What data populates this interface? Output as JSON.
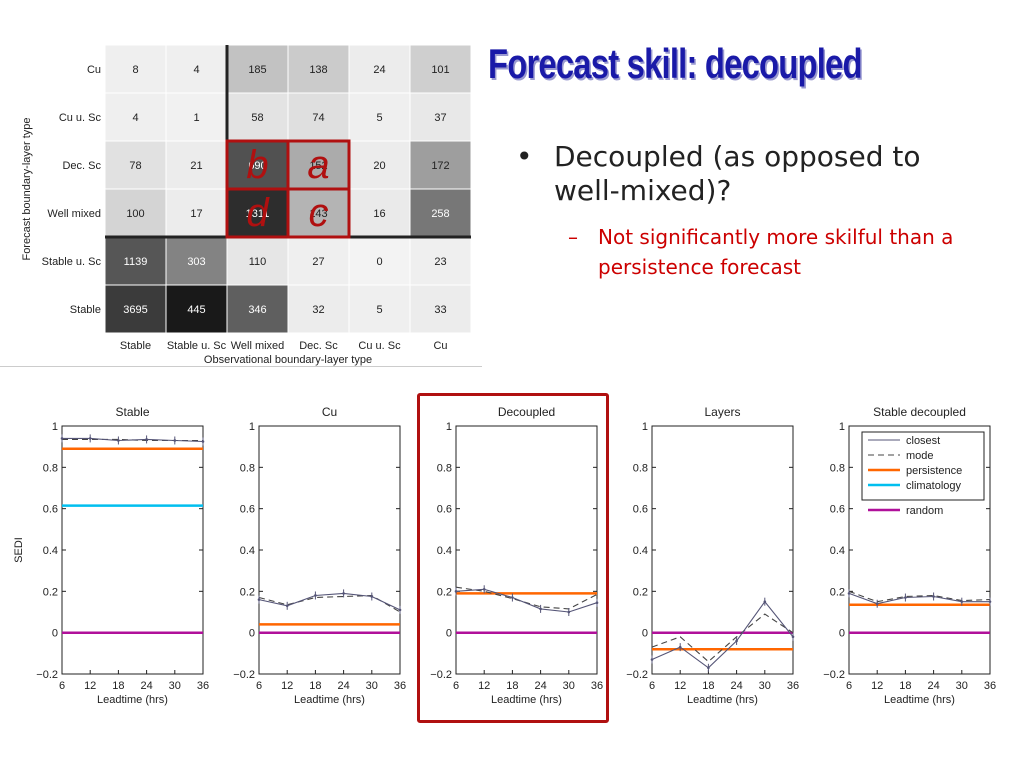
{
  "slide": {
    "title": "Forecast skill: decoupled",
    "bullet": "Decoupled (as opposed to well-mixed)?",
    "bullet_marker": "•",
    "sub_bullet": "Not significantly more skilful than a persistence forecast",
    "sub_marker": "–"
  },
  "colors": {
    "title": "#1a1aa8",
    "sub_bullet": "#cc0000",
    "highlight": "#b01010",
    "closest": "#555577",
    "mode": "#444444",
    "persistence": "#ff6600",
    "climatology": "#00bfef",
    "random": "#b0109a"
  },
  "chart_data": [
    {
      "type": "heatmap",
      "xlabel": "Observational boundary-layer type",
      "ylabel": "Forecast boundary-layer type",
      "x_categories": [
        "Stable",
        "Stable u. Sc",
        "Well mixed",
        "Dec. Sc",
        "Cu u. Sc",
        "Cu"
      ],
      "y_categories": [
        "Cu",
        "Cu u. Sc",
        "Dec. Sc",
        "Well mixed",
        "Stable u. Sc",
        "Stable"
      ],
      "values": [
        [
          8,
          4,
          185,
          138,
          24,
          101
        ],
        [
          4,
          1,
          58,
          74,
          5,
          37
        ],
        [
          78,
          21,
          690,
          152,
          20,
          172
        ],
        [
          100,
          17,
          1311,
          143,
          16,
          258
        ],
        [
          1139,
          303,
          110,
          27,
          0,
          23
        ],
        [
          3695,
          445,
          346,
          32,
          5,
          33
        ]
      ],
      "shade_levels": [
        [
          0.02,
          0.02,
          0.22,
          0.18,
          0.03,
          0.16
        ],
        [
          0.02,
          0.01,
          0.07,
          0.09,
          0.02,
          0.05
        ],
        [
          0.08,
          0.03,
          0.72,
          0.32,
          0.03,
          0.38
        ],
        [
          0.14,
          0.03,
          0.88,
          0.28,
          0.04,
          0.55
        ],
        [
          0.7,
          0.5,
          0.06,
          0.02,
          0.0,
          0.02
        ],
        [
          0.82,
          0.97,
          0.66,
          0.03,
          0.02,
          0.03
        ]
      ],
      "annotations": [
        {
          "label": "b",
          "row": 2,
          "col": 2
        },
        {
          "label": "a",
          "row": 2,
          "col": 3
        },
        {
          "label": "d",
          "row": 3,
          "col": 2
        },
        {
          "label": "c",
          "row": 3,
          "col": 3
        }
      ]
    },
    {
      "type": "line",
      "title": "Stable",
      "xlabel": "Leadtime (hrs)",
      "ylabel": "SEDI",
      "x": [
        6,
        12,
        18,
        24,
        30,
        36
      ],
      "xticks": [
        6,
        12,
        18,
        24,
        30,
        36
      ],
      "ylim": [
        -0.2,
        1
      ],
      "yticks": [
        -0.2,
        0,
        0.2,
        0.4,
        0.6,
        0.8,
        1
      ],
      "ytick_labels": [
        "−0.2",
        "0",
        "0.2",
        "0.4",
        "0.6",
        "0.8",
        "1"
      ],
      "series": [
        {
          "name": "closest",
          "values": [
            0.94,
            0.94,
            0.93,
            0.935,
            0.93,
            0.925
          ]
        },
        {
          "name": "mode",
          "values": [
            0.935,
            0.935,
            0.935,
            0.93,
            0.93,
            0.93
          ]
        },
        {
          "name": "persistence",
          "values": [
            0.89,
            0.89,
            0.89,
            0.89,
            0.89,
            0.89
          ]
        },
        {
          "name": "climatology",
          "values": [
            0.615,
            0.615,
            0.615,
            0.615,
            0.615,
            0.615
          ]
        },
        {
          "name": "random",
          "values": [
            0.0,
            0.0,
            0.0,
            0.0,
            0.0,
            0.0
          ]
        }
      ]
    },
    {
      "type": "line",
      "title": "Cu",
      "xlabel": "Leadtime (hrs)",
      "ylabel": "",
      "x": [
        6,
        12,
        18,
        24,
        30,
        36
      ],
      "xticks": [
        6,
        12,
        18,
        24,
        30,
        36
      ],
      "ylim": [
        -0.2,
        1
      ],
      "yticks": [
        -0.2,
        0,
        0.2,
        0.4,
        0.6,
        0.8,
        1
      ],
      "ytick_labels": [
        "−0.2",
        "0",
        "0.2",
        "0.4",
        "0.6",
        "0.8",
        "1"
      ],
      "series": [
        {
          "name": "closest",
          "values": [
            0.16,
            0.13,
            0.18,
            0.19,
            0.175,
            0.11
          ]
        },
        {
          "name": "mode",
          "values": [
            0.17,
            0.135,
            0.17,
            0.175,
            0.18,
            0.1
          ]
        },
        {
          "name": "persistence",
          "values": [
            0.04,
            0.04,
            0.04,
            0.04,
            0.04,
            0.04
          ]
        },
        {
          "name": "random",
          "values": [
            0.0,
            0.0,
            0.0,
            0.0,
            0.0,
            0.0
          ]
        }
      ]
    },
    {
      "type": "line",
      "title": "Decoupled",
      "xlabel": "Leadtime (hrs)",
      "ylabel": "",
      "x": [
        6,
        12,
        18,
        24,
        30,
        36
      ],
      "xticks": [
        6,
        12,
        18,
        24,
        30,
        36
      ],
      "ylim": [
        -0.2,
        1
      ],
      "yticks": [
        -0.2,
        0,
        0.2,
        0.4,
        0.6,
        0.8,
        1
      ],
      "ytick_labels": [
        "−0.2",
        "0",
        "0.2",
        "0.4",
        "0.6",
        "0.8",
        "1"
      ],
      "series": [
        {
          "name": "closest",
          "values": [
            0.2,
            0.21,
            0.17,
            0.115,
            0.1,
            0.145
          ]
        },
        {
          "name": "mode",
          "values": [
            0.22,
            0.2,
            0.165,
            0.125,
            0.115,
            0.185
          ]
        },
        {
          "name": "persistence",
          "values": [
            0.19,
            0.19,
            0.19,
            0.19,
            0.19,
            0.19
          ]
        },
        {
          "name": "random",
          "values": [
            0.0,
            0.0,
            0.0,
            0.0,
            0.0,
            0.0
          ]
        }
      ]
    },
    {
      "type": "line",
      "title": "Layers",
      "xlabel": "Leadtime (hrs)",
      "ylabel": "",
      "x": [
        6,
        12,
        18,
        24,
        30,
        36
      ],
      "xticks": [
        6,
        12,
        18,
        24,
        30,
        36
      ],
      "ylim": [
        -0.2,
        1
      ],
      "yticks": [
        -0.2,
        0,
        0.2,
        0.4,
        0.6,
        0.8,
        1
      ],
      "ytick_labels": [
        "−0.2",
        "0",
        "0.2",
        "0.4",
        "0.6",
        "0.8",
        "1"
      ],
      "series": [
        {
          "name": "closest",
          "values": [
            -0.13,
            -0.07,
            -0.17,
            -0.04,
            0.15,
            -0.02
          ]
        },
        {
          "name": "mode",
          "values": [
            -0.07,
            -0.02,
            -0.14,
            -0.02,
            0.09,
            0.0
          ]
        },
        {
          "name": "persistence",
          "values": [
            -0.08,
            -0.08,
            -0.08,
            -0.08,
            -0.08,
            -0.08
          ]
        },
        {
          "name": "random",
          "values": [
            0.0,
            0.0,
            0.0,
            0.0,
            0.0,
            0.0
          ]
        }
      ]
    },
    {
      "type": "line",
      "title": "Stable decoupled",
      "xlabel": "Leadtime (hrs)",
      "ylabel": "",
      "x": [
        6,
        12,
        18,
        24,
        30,
        36
      ],
      "xticks": [
        6,
        12,
        18,
        24,
        30,
        36
      ],
      "ylim": [
        -0.2,
        1
      ],
      "yticks": [
        -0.2,
        0,
        0.2,
        0.4,
        0.6,
        0.8,
        1
      ],
      "ytick_labels": [
        "−0.2",
        "0",
        "0.2",
        "0.4",
        "0.6",
        "0.8",
        "1"
      ],
      "legend": {
        "placement": "top-right",
        "entries": [
          "closest",
          "mode",
          "persistence",
          "climatology",
          "random"
        ]
      },
      "series": [
        {
          "name": "closest",
          "values": [
            0.19,
            0.14,
            0.17,
            0.175,
            0.15,
            0.15
          ]
        },
        {
          "name": "mode",
          "values": [
            0.2,
            0.15,
            0.175,
            0.18,
            0.155,
            0.16
          ]
        },
        {
          "name": "persistence",
          "values": [
            0.135,
            0.135,
            0.135,
            0.135,
            0.135,
            0.135
          ]
        },
        {
          "name": "random",
          "values": [
            0.0,
            0.0,
            0.0,
            0.0,
            0.0,
            0.0
          ]
        }
      ]
    }
  ]
}
